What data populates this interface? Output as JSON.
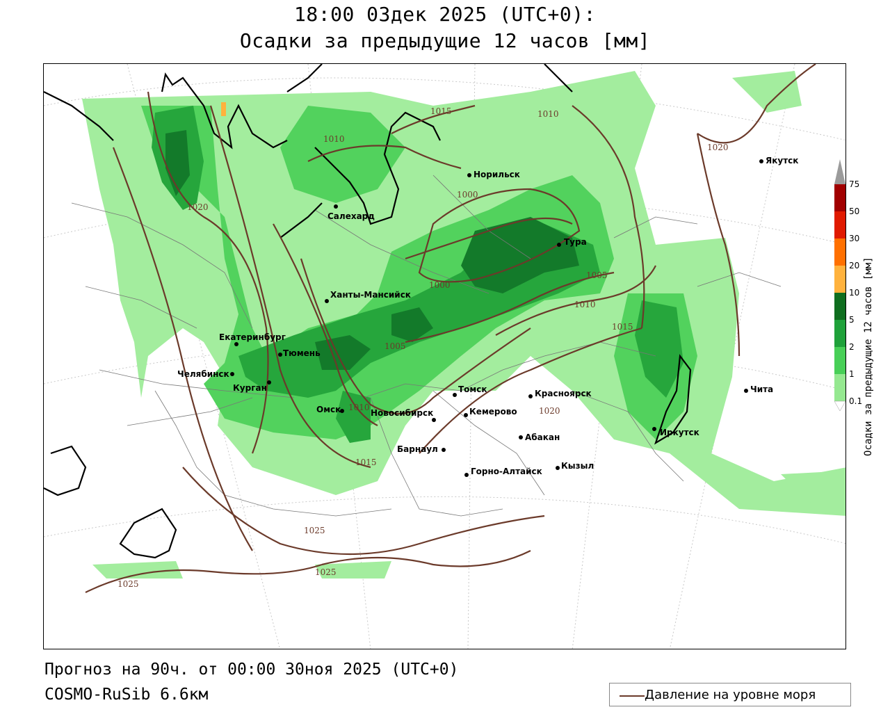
{
  "title_line1": "18:00 03дек 2025 (UTC+0):",
  "title_line2": "Осадки за предыдущие 12 часов [мм]",
  "forecast_line": "Прогноз на 90ч. от 00:00 30ноя 2025 (UTC+0)",
  "model_line": "COSMO-RuSib 6.6км",
  "legend_label": "Давление на уровне моря",
  "colorbar": {
    "title": "Осадки за предыдущие 12 часов [мм]",
    "ticks": [
      "75",
      "50",
      "30",
      "20",
      "10",
      "5",
      "2",
      "1",
      "0.1"
    ],
    "colors": [
      "#9b9b9b",
      "#a10000",
      "#e01a00",
      "#ff7000",
      "#ffb23d",
      "#0f6e1f",
      "#1fa13a",
      "#48cf57",
      "#95e890"
    ]
  },
  "colors": {
    "isobar": "#6b3a2a",
    "precip_light": "#a3ed9e",
    "precip_medium": "#52d25d",
    "precip_heavy": "#26a63c",
    "precip_very_heavy": "#137a2a"
  },
  "cities": [
    {
      "name": "Норильск"
    },
    {
      "name": "Якутск"
    },
    {
      "name": "Салехард"
    },
    {
      "name": "Тура"
    },
    {
      "name": "Ханты-Мансийск"
    },
    {
      "name": "Екатеринбург"
    },
    {
      "name": "Тюмень"
    },
    {
      "name": "Челябинск"
    },
    {
      "name": "Курган"
    },
    {
      "name": "Омск"
    },
    {
      "name": "Новосибирск"
    },
    {
      "name": "Томск"
    },
    {
      "name": "Кемерово"
    },
    {
      "name": "Красноярск"
    },
    {
      "name": "Барнаул"
    },
    {
      "name": "Абакан"
    },
    {
      "name": "Кызыл"
    },
    {
      "name": "Горно-Алтайск"
    },
    {
      "name": "Иркутск"
    },
    {
      "name": "Чита"
    }
  ],
  "isobar_labels": [
    "1015",
    "1010",
    "1020",
    "1010",
    "1020",
    "1000",
    "1000",
    "1005",
    "1010",
    "1015",
    "1005",
    "1010",
    "1020",
    "1015",
    "1025",
    "1025",
    "1025"
  ]
}
